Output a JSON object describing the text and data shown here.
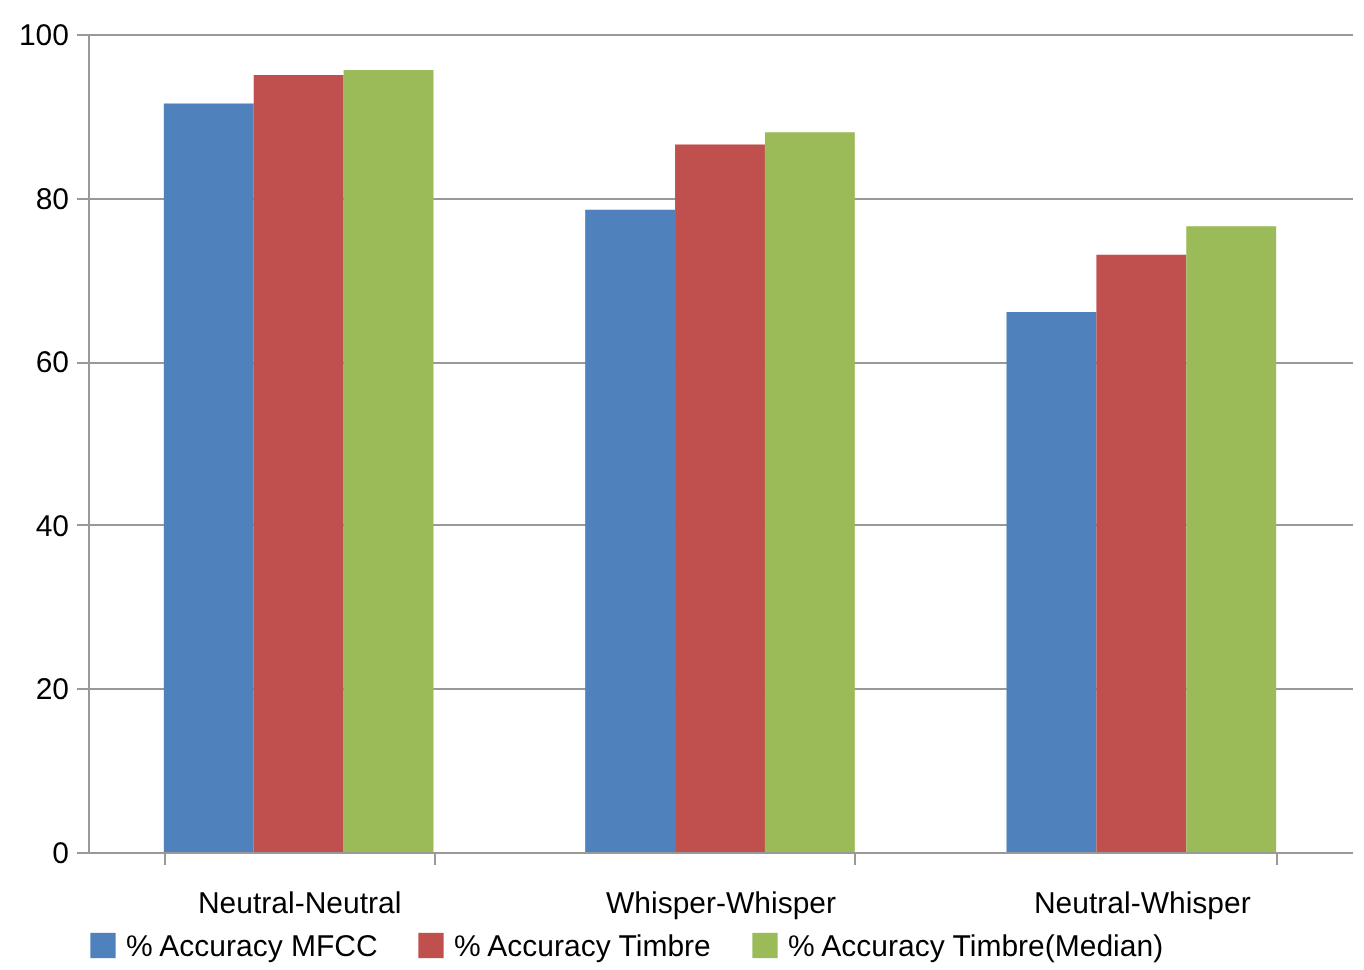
{
  "chart_data": {
    "type": "bar",
    "categories": [
      "Neutral-Neutral",
      "Whisper-Whisper",
      "Neutral-Whisper"
    ],
    "series": [
      {
        "name": "% Accuracy MFCC",
        "color": "#4f81bd",
        "values": [
          91.5,
          78.5,
          66
        ]
      },
      {
        "name": "% Accuracy Timbre",
        "color": "#c0504d",
        "values": [
          95,
          86.5,
          73
        ]
      },
      {
        "name": "% Accuracy Timbre(Median)",
        "color": "#9bbb59",
        "values": [
          95.6,
          88,
          76.5
        ]
      }
    ],
    "ylim": [
      0,
      100
    ],
    "yticks": [
      0,
      20,
      40,
      60,
      80,
      100
    ],
    "grid": "y",
    "legend": "bottom"
  }
}
